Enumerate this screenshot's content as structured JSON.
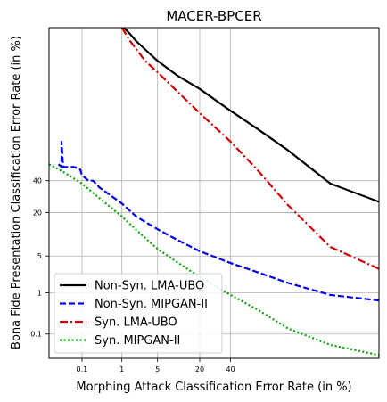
{
  "chart_data": {
    "type": "line",
    "title": "MACER-BPCER",
    "xlabel": "Morphing Attack Classification Error Rate (in %)",
    "ylabel": "Bona Fide Presentation Classification Error Rate (in %)",
    "x_scale": "probit",
    "y_scale": "probit",
    "xlim": [
      0.01,
      99.5
    ],
    "ylim": [
      0.02,
      99.5
    ],
    "x_ticks": [
      0.1,
      1,
      5,
      20,
      40
    ],
    "y_ticks": [
      0.1,
      1,
      5,
      20,
      40
    ],
    "grid": true,
    "legend_position": "lower-left",
    "series": [
      {
        "name": "Non-Syn. LMA-UBO",
        "color": "#000000",
        "style": "solid",
        "points": [
          [
            1.1,
            99.5
          ],
          [
            1.5,
            99.3
          ],
          [
            2,
            99
          ],
          [
            3,
            98.5
          ],
          [
            5,
            97.5
          ],
          [
            10,
            95.5
          ],
          [
            20,
            92.5
          ],
          [
            40,
            85
          ],
          [
            60,
            76
          ],
          [
            80,
            62
          ],
          [
            95,
            38
          ],
          [
            99.5,
            26
          ]
        ]
      },
      {
        "name": "Non-Syn. MIPGAN-II",
        "color": "#0000ee",
        "style": "dashed",
        "points": [
          [
            0.02,
            52
          ],
          [
            0.025,
            50
          ],
          [
            0.025,
            68
          ],
          [
            0.028,
            50
          ],
          [
            0.05,
            50
          ],
          [
            0.06,
            50
          ],
          [
            0.09,
            48
          ],
          [
            0.1,
            44
          ],
          [
            0.15,
            40
          ],
          [
            0.2,
            40
          ],
          [
            0.3,
            35
          ],
          [
            1,
            25
          ],
          [
            2,
            18
          ],
          [
            5,
            12.5
          ],
          [
            10,
            9
          ],
          [
            20,
            6
          ],
          [
            40,
            3.8
          ],
          [
            60,
            2.6
          ],
          [
            80,
            1.6
          ],
          [
            95,
            0.9
          ],
          [
            99.5,
            0.68
          ]
        ]
      },
      {
        "name": "Syn. LMA-UBO",
        "color": "#cc0000",
        "style": "dashdot",
        "points": [
          [
            1,
            99.5
          ],
          [
            1.5,
            99
          ],
          [
            3,
            97.5
          ],
          [
            5,
            96
          ],
          [
            10,
            92
          ],
          [
            20,
            84
          ],
          [
            40,
            68
          ],
          [
            60,
            48
          ],
          [
            80,
            24
          ],
          [
            95,
            7
          ],
          [
            99.5,
            3
          ]
        ]
      },
      {
        "name": "Syn. MIPGAN-II",
        "color": "#00aa00",
        "style": "dotted",
        "points": [
          [
            0.01,
            52
          ],
          [
            0.03,
            46
          ],
          [
            0.1,
            38
          ],
          [
            0.3,
            28
          ],
          [
            1,
            18
          ],
          [
            3,
            9.5
          ],
          [
            5,
            6.5
          ],
          [
            10,
            4
          ],
          [
            20,
            2.1
          ],
          [
            40,
            0.9
          ],
          [
            60,
            0.42
          ],
          [
            80,
            0.14
          ],
          [
            95,
            0.05
          ],
          [
            99.5,
            0.025
          ]
        ]
      }
    ]
  }
}
